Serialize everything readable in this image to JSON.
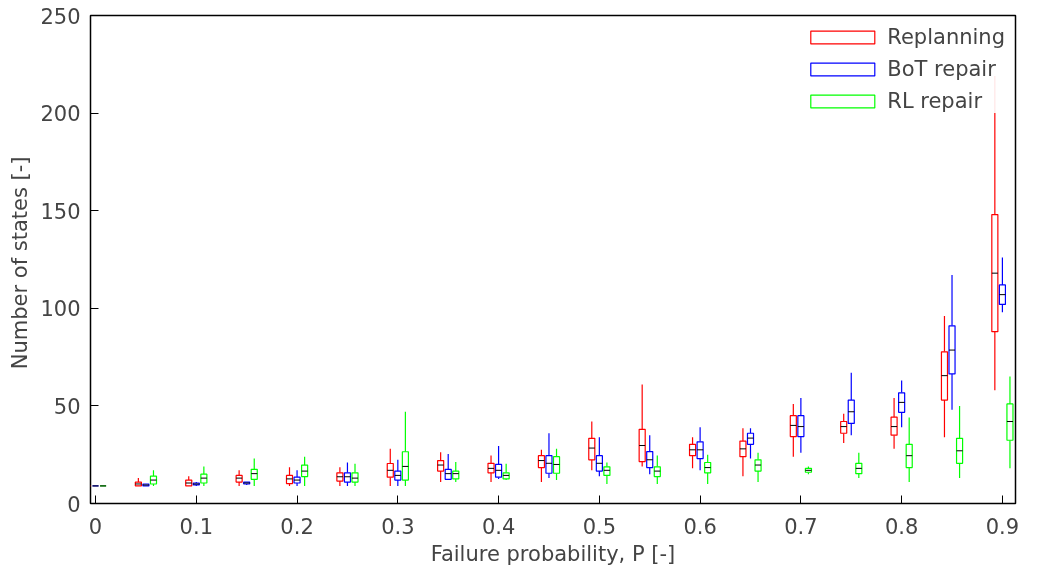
{
  "chart_data": {
    "type": "box",
    "xlabel": "Failure probability, P [-]",
    "ylabel": "Number of states  [-]",
    "x": [
      0,
      0.05,
      0.1,
      0.15,
      0.2,
      0.25,
      0.3,
      0.35,
      0.4,
      0.45,
      0.5,
      0.55,
      0.6,
      0.65,
      0.7,
      0.75,
      0.8,
      0.85,
      0.9
    ],
    "xlim": [
      -0.005,
      0.913
    ],
    "xticks": [
      0,
      0.1,
      0.2,
      0.3,
      0.4,
      0.5,
      0.6,
      0.7,
      0.8,
      0.9
    ],
    "ylim": [
      0,
      250
    ],
    "yticks": [
      0,
      50,
      100,
      150,
      200,
      250
    ],
    "grid": false,
    "legend": "top right",
    "series": [
      {
        "name": "Replanning",
        "color": "#ff0000",
        "boxes": [
          {
            "low": 9,
            "q1": 9,
            "median": 9,
            "q3": 9,
            "high": 9
          },
          {
            "low": 9,
            "q1": 9,
            "median": 10,
            "q3": 11,
            "high": 13
          },
          {
            "low": 9,
            "q1": 9,
            "median": 10.5,
            "q3": 12,
            "high": 14
          },
          {
            "low": 9,
            "q1": 11,
            "median": 13,
            "q3": 14.4,
            "high": 17
          },
          {
            "low": 9,
            "q1": 10.2,
            "median": 12.6,
            "q3": 14.4,
            "high": 18.6
          },
          {
            "low": 9,
            "q1": 11.5,
            "median": 13.7,
            "q3": 15.7,
            "high": 18.6
          },
          {
            "low": 9,
            "q1": 13.5,
            "median": 17,
            "q3": 20.5,
            "high": 28
          },
          {
            "low": 11,
            "q1": 16.6,
            "median": 19.7,
            "q3": 22,
            "high": 26.3
          },
          {
            "low": 11,
            "q1": 15.7,
            "median": 18,
            "q3": 20.6,
            "high": 24.6
          },
          {
            "low": 11,
            "q1": 18.4,
            "median": 22,
            "q3": 24.5,
            "high": 27.5
          },
          {
            "low": 17,
            "q1": 22.4,
            "median": 28.4,
            "q3": 33.4,
            "high": 42
          },
          {
            "low": 19,
            "q1": 21.5,
            "median": 29.7,
            "q3": 38,
            "high": 61
          },
          {
            "low": 18,
            "q1": 24.5,
            "median": 27.5,
            "q3": 30.3,
            "high": 34
          },
          {
            "low": 14,
            "q1": 24,
            "median": 28,
            "q3": 32,
            "high": 38.5
          },
          {
            "low": 24,
            "q1": 34.3,
            "median": 40,
            "q3": 45,
            "high": 51
          },
          {
            "low": 31,
            "q1": 36,
            "median": 39.4,
            "q3": 42,
            "high": 46
          },
          {
            "low": 28,
            "q1": 35,
            "median": 39.4,
            "q3": 44.3,
            "high": 54
          },
          {
            "low": 34,
            "q1": 53,
            "median": 65.5,
            "q3": 77.7,
            "high": 96
          },
          {
            "low": 58,
            "q1": 88,
            "median": 118,
            "q3": 148,
            "high": 219
          }
        ]
      },
      {
        "name": "BoT repair",
        "color": "#0000ff",
        "boxes": [
          {
            "low": 9,
            "q1": 9,
            "median": 9,
            "q3": 9,
            "high": 9
          },
          {
            "low": 9,
            "q1": 9,
            "median": 9.5,
            "q3": 10,
            "high": 10
          },
          {
            "low": 9,
            "q1": 9.5,
            "median": 10,
            "q3": 10.5,
            "high": 11
          },
          {
            "low": 9.5,
            "q1": 10,
            "median": 10.5,
            "q3": 11,
            "high": 11
          },
          {
            "low": 9,
            "q1": 10.5,
            "median": 12,
            "q3": 13.5,
            "high": 17
          },
          {
            "low": 9,
            "q1": 11,
            "median": 13.7,
            "q3": 15.7,
            "high": 21
          },
          {
            "low": 9,
            "q1": 12,
            "median": 14.4,
            "q3": 16.6,
            "high": 22.4
          },
          {
            "low": 12,
            "q1": 12.4,
            "median": 15.3,
            "q3": 17.5,
            "high": 25.3
          },
          {
            "low": 12.6,
            "q1": 13.5,
            "median": 17,
            "q3": 20,
            "high": 29.4
          },
          {
            "low": 13,
            "q1": 15.5,
            "median": 20.6,
            "q3": 24.5,
            "high": 36
          },
          {
            "low": 14,
            "q1": 16.6,
            "median": 20.6,
            "q3": 24.5,
            "high": 34
          },
          {
            "low": 15,
            "q1": 18.4,
            "median": 22.4,
            "q3": 26.6,
            "high": 35
          },
          {
            "low": 17,
            "q1": 23,
            "median": 27.5,
            "q3": 31.6,
            "high": 39
          },
          {
            "low": 23,
            "q1": 30.3,
            "median": 33.5,
            "q3": 36,
            "high": 38.5
          },
          {
            "low": 26,
            "q1": 34.3,
            "median": 39.4,
            "q3": 45,
            "high": 54
          },
          {
            "low": 35,
            "q1": 41,
            "median": 47,
            "q3": 53,
            "high": 67
          },
          {
            "low": 39,
            "q1": 46.7,
            "median": 51.8,
            "q3": 56.7,
            "high": 63
          },
          {
            "low": 48,
            "q1": 66.4,
            "median": 78.6,
            "q3": 91,
            "high": 117
          },
          {
            "low": 98,
            "q1": 102,
            "median": 107,
            "q3": 112,
            "high": 126
          }
        ]
      },
      {
        "name": "RL repair",
        "color": "#00ff00",
        "boxes": [
          {
            "low": 9,
            "q1": 9,
            "median": 9,
            "q3": 9,
            "high": 9
          },
          {
            "low": 9,
            "q1": 10,
            "median": 12,
            "q3": 14,
            "high": 17
          },
          {
            "low": 9,
            "q1": 10.5,
            "median": 13,
            "q3": 15,
            "high": 19
          },
          {
            "low": 9,
            "q1": 12.4,
            "median": 15.3,
            "q3": 17.5,
            "high": 23
          },
          {
            "low": 9,
            "q1": 13.8,
            "median": 16.6,
            "q3": 19.7,
            "high": 24
          },
          {
            "low": 9,
            "q1": 11,
            "median": 13,
            "q3": 15.7,
            "high": 20.4
          },
          {
            "low": 9,
            "q1": 12,
            "median": 19,
            "q3": 26.5,
            "high": 47
          },
          {
            "low": 11,
            "q1": 12.6,
            "median": 15.3,
            "q3": 16.6,
            "high": 21.3
          },
          {
            "low": 12,
            "q1": 12.6,
            "median": 14.4,
            "q3": 15.7,
            "high": 20.4
          },
          {
            "low": 12,
            "q1": 15.5,
            "median": 20,
            "q3": 24,
            "high": 28
          },
          {
            "low": 10,
            "q1": 14.4,
            "median": 17,
            "q3": 18.8,
            "high": 21
          },
          {
            "low": 10,
            "q1": 13.8,
            "median": 16.6,
            "q3": 18.8,
            "high": 24.6
          },
          {
            "low": 10,
            "q1": 15.7,
            "median": 18.4,
            "q3": 21,
            "high": 25
          },
          {
            "low": 11,
            "q1": 16.6,
            "median": 19.7,
            "q3": 22.4,
            "high": 26
          },
          {
            "low": 15,
            "q1": 16,
            "median": 17,
            "q3": 18,
            "high": 19
          },
          {
            "low": 13,
            "q1": 15.3,
            "median": 18,
            "q3": 20.6,
            "high": 26
          },
          {
            "low": 11,
            "q1": 18.4,
            "median": 24.5,
            "q3": 30.3,
            "high": 44
          },
          {
            "low": 13,
            "q1": 20.6,
            "median": 27,
            "q3": 33.4,
            "high": 50
          },
          {
            "low": 18,
            "q1": 32.4,
            "median": 42,
            "q3": 51,
            "high": 65
          }
        ]
      }
    ]
  }
}
